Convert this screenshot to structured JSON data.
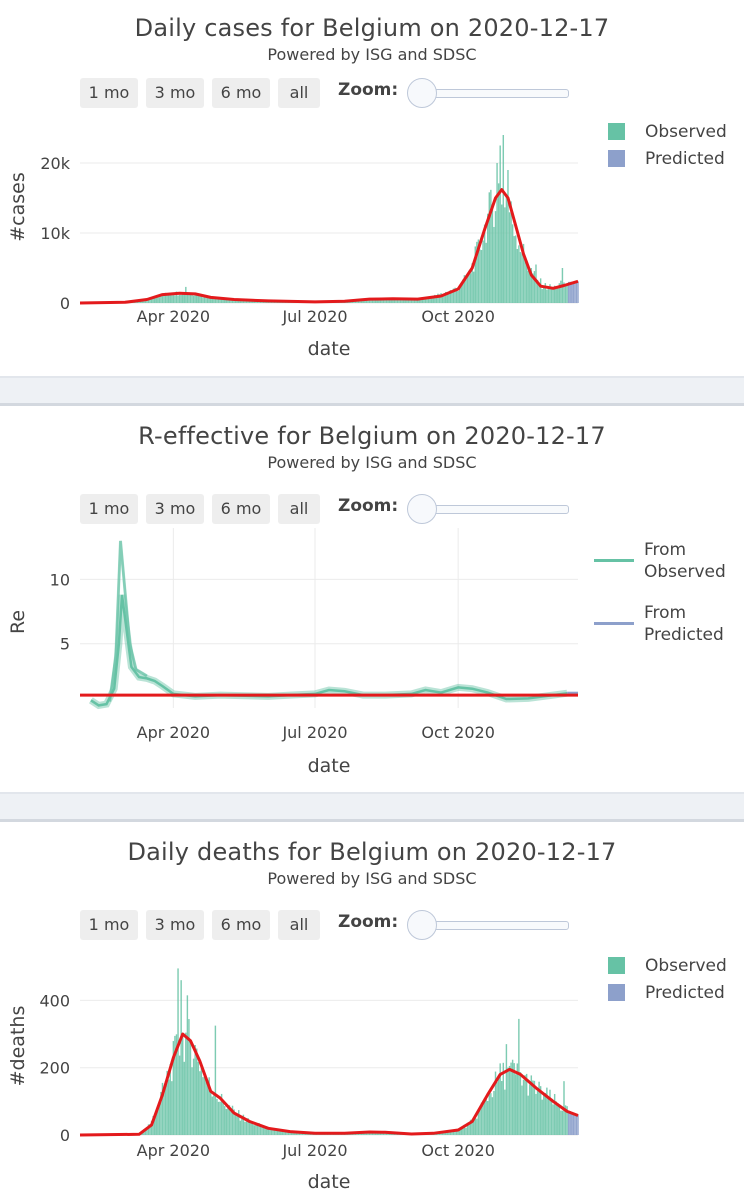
{
  "range_buttons": [
    "1 mo",
    "3 mo",
    "6 mo",
    "all"
  ],
  "zoom_label": "Zoom:",
  "colors": {
    "observed": "#66c2a5",
    "predicted": "#8da0cb",
    "fit": "#e31a1c"
  },
  "x_ticks": [
    {
      "date": "2020-04-01",
      "label": "Apr 2020"
    },
    {
      "date": "2020-07-01",
      "label": "Jul 2020"
    },
    {
      "date": "2020-10-01",
      "label": "Oct 2020"
    }
  ],
  "chart_data": [
    {
      "id": "cases",
      "type": "bar",
      "title": "Daily cases for Belgium on 2020-12-17",
      "subtitle": "Powered by ISG and SDSC",
      "xlabel": "date",
      "ylabel": "#cases",
      "xlim": [
        "2020-02-01",
        "2020-12-17"
      ],
      "ylim": [
        0,
        25000
      ],
      "y_ticks": [
        {
          "value": 0,
          "label": "0"
        },
        {
          "value": 10000,
          "label": "10k"
        },
        {
          "value": 20000,
          "label": "20k"
        }
      ],
      "observed_end": "2020-12-10",
      "legend": [
        "Observed",
        "Predicted"
      ],
      "series": [
        {
          "name": "Observed",
          "points": [
            [
              "2020-02-01",
              0
            ],
            [
              "2020-03-01",
              50
            ],
            [
              "2020-03-10",
              300
            ],
            [
              "2020-03-20",
              900
            ],
            [
              "2020-03-25",
              1200
            ],
            [
              "2020-04-01",
              1400
            ],
            [
              "2020-04-05",
              1500
            ],
            [
              "2020-04-10",
              1550
            ],
            [
              "2020-04-15",
              1400
            ],
            [
              "2020-04-20",
              1100
            ],
            [
              "2020-04-25",
              900
            ],
            [
              "2020-05-01",
              650
            ],
            [
              "2020-05-15",
              450
            ],
            [
              "2020-06-01",
              300
            ],
            [
              "2020-06-15",
              180
            ],
            [
              "2020-07-01",
              150
            ],
            [
              "2020-07-15",
              250
            ],
            [
              "2020-08-01",
              550
            ],
            [
              "2020-08-10",
              650
            ],
            [
              "2020-08-20",
              600
            ],
            [
              "2020-09-01",
              500
            ],
            [
              "2020-09-10",
              600
            ],
            [
              "2020-09-20",
              1300
            ],
            [
              "2020-10-01",
              2200
            ],
            [
              "2020-10-08",
              4200
            ],
            [
              "2020-10-15",
              8500
            ],
            [
              "2020-10-20",
              12500
            ],
            [
              "2020-10-25",
              15500
            ],
            [
              "2020-10-28",
              17000
            ],
            [
              "2020-11-01",
              15500
            ],
            [
              "2020-11-05",
              12000
            ],
            [
              "2020-11-10",
              8500
            ],
            [
              "2020-11-15",
              5500
            ],
            [
              "2020-11-20",
              3500
            ],
            [
              "2020-11-25",
              2500
            ],
            [
              "2020-12-01",
              2200
            ],
            [
              "2020-12-05",
              2600
            ],
            [
              "2020-12-10",
              3000
            ]
          ]
        },
        {
          "name": "Predicted",
          "points": [
            [
              "2020-12-10",
              3000
            ],
            [
              "2020-12-17",
              3100
            ]
          ]
        },
        {
          "name": "Fit",
          "points": [
            [
              "2020-02-01",
              0
            ],
            [
              "2020-03-01",
              100
            ],
            [
              "2020-03-15",
              500
            ],
            [
              "2020-03-25",
              1200
            ],
            [
              "2020-04-05",
              1400
            ],
            [
              "2020-04-15",
              1300
            ],
            [
              "2020-04-25",
              800
            ],
            [
              "2020-05-10",
              500
            ],
            [
              "2020-06-01",
              300
            ],
            [
              "2020-07-01",
              150
            ],
            [
              "2020-07-20",
              250
            ],
            [
              "2020-08-05",
              550
            ],
            [
              "2020-08-20",
              600
            ],
            [
              "2020-09-05",
              550
            ],
            [
              "2020-09-20",
              1000
            ],
            [
              "2020-10-01",
              2000
            ],
            [
              "2020-10-10",
              5000
            ],
            [
              "2020-10-18",
              10500
            ],
            [
              "2020-10-25",
              15000
            ],
            [
              "2020-10-29",
              16200
            ],
            [
              "2020-11-02",
              15000
            ],
            [
              "2020-11-07",
              11000
            ],
            [
              "2020-11-12",
              7000
            ],
            [
              "2020-11-17",
              4000
            ],
            [
              "2020-11-23",
              2400
            ],
            [
              "2020-12-01",
              2100
            ],
            [
              "2020-12-08",
              2500
            ],
            [
              "2020-12-17",
              3100
            ]
          ]
        }
      ],
      "spikes": [
        [
          "2020-04-09",
          2300
        ],
        [
          "2020-10-28",
          22500
        ],
        [
          "2020-10-30",
          24000
        ],
        [
          "2020-10-26",
          20000
        ],
        [
          "2020-11-02",
          19000
        ],
        [
          "2020-11-20",
          5500
        ],
        [
          "2020-12-07",
          5000
        ]
      ]
    },
    {
      "id": "re",
      "type": "line",
      "title": "R-effective for Belgium on 2020-12-17",
      "subtitle": "Powered by ISG and SDSC",
      "xlabel": "date",
      "ylabel": "Re",
      "xlim": [
        "2020-02-01",
        "2020-12-17"
      ],
      "ylim": [
        0,
        14
      ],
      "y_ticks": [
        {
          "value": 5,
          "label": "5"
        },
        {
          "value": 10,
          "label": "10"
        }
      ],
      "reference_line": 1,
      "legend": [
        "From Observed",
        "From Predicted"
      ],
      "series": [
        {
          "name": "From Observed",
          "points": [
            [
              "2020-02-08",
              0.6
            ],
            [
              "2020-02-13",
              0.2
            ],
            [
              "2020-02-18",
              0.3
            ],
            [
              "2020-02-23",
              1.5
            ],
            [
              "2020-02-26",
              5
            ],
            [
              "2020-02-28",
              8.8
            ],
            [
              "2020-03-02",
              6
            ],
            [
              "2020-03-05",
              3.2
            ],
            [
              "2020-03-10",
              2.4
            ],
            [
              "2020-03-15",
              2.3
            ],
            [
              "2020-03-20",
              2.1
            ],
            [
              "2020-03-25",
              1.7
            ],
            [
              "2020-04-01",
              1.1
            ],
            [
              "2020-04-15",
              0.9
            ],
            [
              "2020-05-01",
              1.0
            ],
            [
              "2020-06-01",
              0.9
            ],
            [
              "2020-06-15",
              1.0
            ],
            [
              "2020-07-01",
              1.1
            ],
            [
              "2020-07-10",
              1.4
            ],
            [
              "2020-07-20",
              1.3
            ],
            [
              "2020-08-01",
              1.0
            ],
            [
              "2020-08-15",
              1.0
            ],
            [
              "2020-09-01",
              1.1
            ],
            [
              "2020-09-10",
              1.4
            ],
            [
              "2020-09-20",
              1.2
            ],
            [
              "2020-10-01",
              1.6
            ],
            [
              "2020-10-10",
              1.5
            ],
            [
              "2020-10-20",
              1.2
            ],
            [
              "2020-11-01",
              0.7
            ],
            [
              "2020-11-15",
              0.75
            ],
            [
              "2020-12-01",
              1.0
            ],
            [
              "2020-12-10",
              1.15
            ]
          ]
        },
        {
          "name": "From Observed (upper)",
          "points": [
            [
              "2020-02-20",
              0.5
            ],
            [
              "2020-02-24",
              4
            ],
            [
              "2020-02-27",
              13
            ],
            [
              "2020-03-01",
              9
            ],
            [
              "2020-03-04",
              5
            ],
            [
              "2020-03-08",
              3
            ],
            [
              "2020-03-15",
              2.5
            ]
          ]
        },
        {
          "name": "From Predicted",
          "points": [
            [
              "2020-12-10",
              1.15
            ],
            [
              "2020-12-17",
              1.15
            ]
          ]
        }
      ]
    },
    {
      "id": "deaths",
      "type": "bar",
      "title": "Daily deaths for Belgium on 2020-12-17",
      "subtitle": "Powered by ISG and SDSC",
      "xlabel": "date",
      "ylabel": "#deaths",
      "xlim": [
        "2020-02-01",
        "2020-12-17"
      ],
      "ylim": [
        0,
        520
      ],
      "y_ticks": [
        {
          "value": 0,
          "label": "0"
        },
        {
          "value": 200,
          "label": "200"
        },
        {
          "value": 400,
          "label": "400"
        }
      ],
      "observed_end": "2020-12-10",
      "legend": [
        "Observed",
        "Predicted"
      ],
      "series": [
        {
          "name": "Observed",
          "points": [
            [
              "2020-02-01",
              0
            ],
            [
              "2020-03-10",
              2
            ],
            [
              "2020-03-18",
              40
            ],
            [
              "2020-03-25",
              130
            ],
            [
              "2020-04-01",
              230
            ],
            [
              "2020-04-05",
              290
            ],
            [
              "2020-04-10",
              300
            ],
            [
              "2020-04-15",
              260
            ],
            [
              "2020-04-20",
              200
            ],
            [
              "2020-04-25",
              140
            ],
            [
              "2020-05-01",
              110
            ],
            [
              "2020-05-10",
              70
            ],
            [
              "2020-05-20",
              40
            ],
            [
              "2020-06-01",
              20
            ],
            [
              "2020-06-15",
              10
            ],
            [
              "2020-07-01",
              5
            ],
            [
              "2020-07-15",
              6
            ],
            [
              "2020-08-01",
              9
            ],
            [
              "2020-08-10",
              10
            ],
            [
              "2020-08-20",
              7
            ],
            [
              "2020-09-01",
              4
            ],
            [
              "2020-09-15",
              5
            ],
            [
              "2020-10-01",
              15
            ],
            [
              "2020-10-10",
              40
            ],
            [
              "2020-10-20",
              120
            ],
            [
              "2020-10-28",
              180
            ],
            [
              "2020-11-05",
              195
            ],
            [
              "2020-11-12",
              170
            ],
            [
              "2020-11-20",
              140
            ],
            [
              "2020-11-28",
              115
            ],
            [
              "2020-12-05",
              90
            ],
            [
              "2020-12-10",
              75
            ]
          ]
        },
        {
          "name": "Predicted",
          "points": [
            [
              "2020-12-10",
              75
            ],
            [
              "2020-12-17",
              60
            ]
          ]
        },
        {
          "name": "Fit",
          "points": [
            [
              "2020-02-01",
              0
            ],
            [
              "2020-03-10",
              2
            ],
            [
              "2020-03-18",
              30
            ],
            [
              "2020-03-25",
              120
            ],
            [
              "2020-04-01",
              230
            ],
            [
              "2020-04-07",
              300
            ],
            [
              "2020-04-12",
              280
            ],
            [
              "2020-04-18",
              220
            ],
            [
              "2020-04-25",
              130
            ],
            [
              "2020-05-01",
              110
            ],
            [
              "2020-05-10",
              65
            ],
            [
              "2020-05-20",
              40
            ],
            [
              "2020-06-01",
              20
            ],
            [
              "2020-06-15",
              10
            ],
            [
              "2020-07-01",
              5
            ],
            [
              "2020-07-20",
              5
            ],
            [
              "2020-08-05",
              9
            ],
            [
              "2020-08-15",
              8
            ],
            [
              "2020-09-01",
              3
            ],
            [
              "2020-09-15",
              5
            ],
            [
              "2020-10-01",
              15
            ],
            [
              "2020-10-10",
              40
            ],
            [
              "2020-10-20",
              120
            ],
            [
              "2020-10-28",
              180
            ],
            [
              "2020-11-03",
              195
            ],
            [
              "2020-11-10",
              180
            ],
            [
              "2020-11-20",
              140
            ],
            [
              "2020-12-01",
              100
            ],
            [
              "2020-12-10",
              70
            ],
            [
              "2020-12-17",
              58
            ]
          ]
        }
      ],
      "spikes": [
        [
          "2020-04-04",
          495
        ],
        [
          "2020-04-06",
          460
        ],
        [
          "2020-04-10",
          415
        ],
        [
          "2020-04-28",
          325
        ],
        [
          "2020-11-09",
          345
        ],
        [
          "2020-11-01",
          270
        ],
        [
          "2020-12-08",
          160
        ]
      ]
    }
  ]
}
